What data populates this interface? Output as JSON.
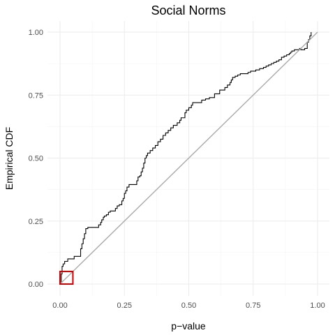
{
  "chart_data": {
    "type": "line",
    "title": "Social Norms",
    "xlabel": "p−value",
    "ylabel": "Empirical CDF",
    "xlim": [
      0,
      1
    ],
    "ylim": [
      0,
      1
    ],
    "x_ticks": [
      {
        "value": 0,
        "label": "0.00"
      },
      {
        "value": 0.25,
        "label": "0.25"
      },
      {
        "value": 0.5,
        "label": "0.50"
      },
      {
        "value": 0.75,
        "label": "0.75"
      },
      {
        "value": 1,
        "label": "1.00"
      }
    ],
    "y_ticks": [
      {
        "value": 0,
        "label": "0.00"
      },
      {
        "value": 0.25,
        "label": "0.25"
      },
      {
        "value": 0.5,
        "label": "0.50"
      },
      {
        "value": 0.75,
        "label": "0.75"
      },
      {
        "value": 1,
        "label": "1.00"
      }
    ],
    "grid": true,
    "series": [
      {
        "style": "step",
        "color": "#000000",
        "points": [
          [
            0.0,
            0.0
          ],
          [
            0.005,
            0.04
          ],
          [
            0.008,
            0.07
          ],
          [
            0.012,
            0.08
          ],
          [
            0.018,
            0.09
          ],
          [
            0.03,
            0.1
          ],
          [
            0.04,
            0.1
          ],
          [
            0.055,
            0.11
          ],
          [
            0.072,
            0.11
          ],
          [
            0.08,
            0.14
          ],
          [
            0.085,
            0.16
          ],
          [
            0.09,
            0.18
          ],
          [
            0.095,
            0.2
          ],
          [
            0.1,
            0.22
          ],
          [
            0.108,
            0.225
          ],
          [
            0.14,
            0.225
          ],
          [
            0.15,
            0.235
          ],
          [
            0.158,
            0.245
          ],
          [
            0.162,
            0.255
          ],
          [
            0.168,
            0.265
          ],
          [
            0.172,
            0.27
          ],
          [
            0.18,
            0.275
          ],
          [
            0.188,
            0.285
          ],
          [
            0.195,
            0.29
          ],
          [
            0.21,
            0.29
          ],
          [
            0.215,
            0.3
          ],
          [
            0.222,
            0.31
          ],
          [
            0.23,
            0.315
          ],
          [
            0.24,
            0.33
          ],
          [
            0.245,
            0.34
          ],
          [
            0.25,
            0.36
          ],
          [
            0.255,
            0.37
          ],
          [
            0.26,
            0.385
          ],
          [
            0.268,
            0.395
          ],
          [
            0.29,
            0.395
          ],
          [
            0.298,
            0.41
          ],
          [
            0.303,
            0.425
          ],
          [
            0.31,
            0.43
          ],
          [
            0.315,
            0.445
          ],
          [
            0.32,
            0.46
          ],
          [
            0.325,
            0.48
          ],
          [
            0.33,
            0.5
          ],
          [
            0.335,
            0.51
          ],
          [
            0.34,
            0.52
          ],
          [
            0.35,
            0.53
          ],
          [
            0.36,
            0.54
          ],
          [
            0.37,
            0.55
          ],
          [
            0.38,
            0.565
          ],
          [
            0.39,
            0.575
          ],
          [
            0.4,
            0.59
          ],
          [
            0.41,
            0.6
          ],
          [
            0.42,
            0.61
          ],
          [
            0.43,
            0.62
          ],
          [
            0.44,
            0.63
          ],
          [
            0.45,
            0.63
          ],
          [
            0.455,
            0.64
          ],
          [
            0.465,
            0.65
          ],
          [
            0.47,
            0.66
          ],
          [
            0.48,
            0.66
          ],
          [
            0.485,
            0.68
          ],
          [
            0.49,
            0.69
          ],
          [
            0.5,
            0.7
          ],
          [
            0.51,
            0.71
          ],
          [
            0.515,
            0.72
          ],
          [
            0.545,
            0.72
          ],
          [
            0.55,
            0.73
          ],
          [
            0.565,
            0.735
          ],
          [
            0.58,
            0.74
          ],
          [
            0.6,
            0.755
          ],
          [
            0.62,
            0.77
          ],
          [
            0.64,
            0.78
          ],
          [
            0.65,
            0.79
          ],
          [
            0.66,
            0.8
          ],
          [
            0.665,
            0.81
          ],
          [
            0.67,
            0.82
          ],
          [
            0.68,
            0.825
          ],
          [
            0.69,
            0.83
          ],
          [
            0.7,
            0.835
          ],
          [
            0.72,
            0.835
          ],
          [
            0.73,
            0.84
          ],
          [
            0.74,
            0.845
          ],
          [
            0.76,
            0.85
          ],
          [
            0.775,
            0.855
          ],
          [
            0.79,
            0.86
          ],
          [
            0.8,
            0.865
          ],
          [
            0.81,
            0.87
          ],
          [
            0.82,
            0.875
          ],
          [
            0.83,
            0.88
          ],
          [
            0.84,
            0.885
          ],
          [
            0.85,
            0.89
          ],
          [
            0.86,
            0.9
          ],
          [
            0.87,
            0.905
          ],
          [
            0.88,
            0.91
          ],
          [
            0.89,
            0.915
          ],
          [
            0.895,
            0.92
          ],
          [
            0.9,
            0.925
          ],
          [
            0.91,
            0.93
          ],
          [
            0.93,
            0.935
          ],
          [
            0.935,
            0.93
          ],
          [
            0.95,
            0.935
          ],
          [
            0.96,
            0.96
          ],
          [
            0.965,
            0.97
          ],
          [
            0.97,
            0.985
          ],
          [
            0.975,
            1.0
          ]
        ]
      },
      {
        "style": "line",
        "color": "#aaaaaa",
        "points": [
          [
            0,
            0
          ],
          [
            1,
            1
          ]
        ]
      }
    ],
    "annotations": [
      {
        "type": "rect",
        "x0": 0.0,
        "x1": 0.05,
        "y0": 0.0,
        "y1": 0.05,
        "color": "#cc0000"
      }
    ]
  }
}
